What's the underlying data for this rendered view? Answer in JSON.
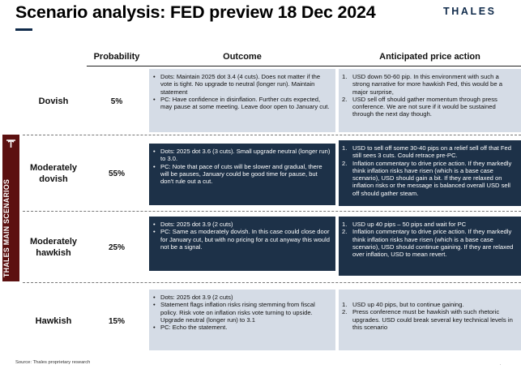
{
  "title": "Scenario analysis: FED preview 18 Dec 2024",
  "brand": "THALES",
  "headers": {
    "probability": "Probability",
    "outcome": "Outcome",
    "price_action": "Anticipated price action"
  },
  "sidebar_label": "THALES MAIN SCENARIOS",
  "sidebar_icon": "thales-emblem-icon",
  "scenarios": [
    {
      "name": "Dovish",
      "probability": "5%",
      "outcome": [
        "Dots: Maintain 2025 dot 3.4 (4 cuts). Does not matter if the vote is tight. No upgrade to neutral (longer run). Maintain statement",
        "PC: Have confidence in disinflation. Further cuts expected, may pause at some meeting. Leave door open to January cut."
      ],
      "price_action": [
        "USD down 50-60 pip. In this environment with such a strong narrative for more hawkish Fed, this would be a major surprise,",
        "USD sell off should gather momentum through press conference. We are not sure if it would be sustained through the next day though."
      ]
    },
    {
      "name": "Moderately dovish",
      "probability": "55%",
      "outcome": [
        "Dots: 2025 dot 3.6 (3 cuts). Small upgrade neutral (longer run) to 3.0.",
        "PC: Note that pace of cuts will be slower and gradual, there will be pauses, January could be good time for pause, but don't rule out a cut."
      ],
      "price_action": [
        "USD to sell off some 30-40 pips on a relief sell off that Fed still sees 3 cuts. Could retrace pre-PC.",
        "Inflation commentary to drive price action. If they markedly think inflation risks have risen (which is a base case scenario), USD should gain a bit. If they are relaxed on inflation risks or the message is balanced overall USD sell off should gather steam."
      ]
    },
    {
      "name": "Moderately hawkish",
      "probability": "25%",
      "outcome": [
        "Dots: 2025 dot 3.9 (2 cuts)",
        "PC: Same as moderately dovish. In this case could close door for January cut, but with no pricing for a cut anyway this would not be a signal."
      ],
      "price_action": [
        "USD up 40 pips – 50 pips and wait for PC",
        "Inflation commentary to drive price action. If they markedly think inflation risks have risen (which is a base case scenario), USD should continue gaining. If they are relaxed over inflation, USD to mean revert."
      ]
    },
    {
      "name": "Hawkish",
      "probability": "15%",
      "outcome": [
        "Dots: 2025 dot 3.9 (2 cuts)",
        "Statement flags inflation risks rising stemming from fiscal policy. Risk vote on inflation risks vote turning to upside. Upgrade neutral (longer run) to 3.1",
        "PC: Echo the statement."
      ],
      "price_action": [
        "USD up 40 pips, but to continue gaining.",
        "Press conference must be hawkish with such rhetoric upgrades. USD could break several key technical levels in this scenario"
      ]
    }
  ],
  "source": "Source: Thales proprietary research",
  "footer_mark": "."
}
